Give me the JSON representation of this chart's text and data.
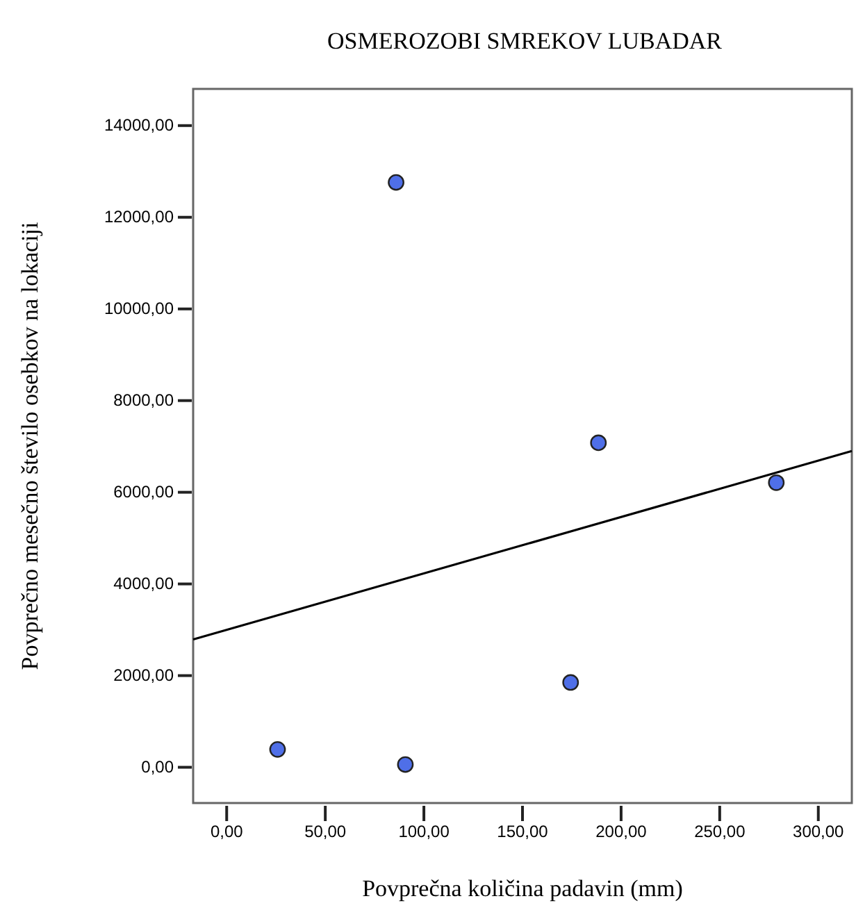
{
  "chart_data": {
    "type": "scatter",
    "title": "OSMEROZOBI SMREKOV LUBADAR",
    "xlabel": "Povprečna količina padavin (mm)",
    "ylabel": "Povprečno mesečno število osebkov na lokaciji",
    "xlim": [
      -17,
      317
    ],
    "ylim": [
      -780,
      14800
    ],
    "xticks": [
      {
        "value": 0,
        "label": "0,00"
      },
      {
        "value": 50,
        "label": "50,00"
      },
      {
        "value": 100,
        "label": "100,00"
      },
      {
        "value": 150,
        "label": "150,00"
      },
      {
        "value": 200,
        "label": "200,00"
      },
      {
        "value": 250,
        "label": "250,00"
      },
      {
        "value": 300,
        "label": "300,00"
      }
    ],
    "yticks": [
      {
        "value": 0,
        "label": "0,00"
      },
      {
        "value": 2000,
        "label": "2000,00"
      },
      {
        "value": 4000,
        "label": "4000,00"
      },
      {
        "value": 6000,
        "label": "6000,00"
      },
      {
        "value": 8000,
        "label": "8000,00"
      },
      {
        "value": 10000,
        "label": "10000,00"
      },
      {
        "value": 12000,
        "label": "12000,00"
      },
      {
        "value": 14000,
        "label": "14000,00"
      }
    ],
    "grid": false,
    "series": [
      {
        "marker": "circle",
        "color": "#4f6fe8",
        "x": [
          85.9,
          188.5,
          278.7,
          174.4,
          25.8,
          90.6
        ],
        "values": [
          12760,
          7080,
          6210,
          1850,
          390,
          60
        ]
      },
      {
        "type": "line",
        "marker": "none",
        "color": "#000000",
        "x": [
          -17,
          317
        ],
        "values": [
          2790,
          6900
        ]
      }
    ]
  }
}
